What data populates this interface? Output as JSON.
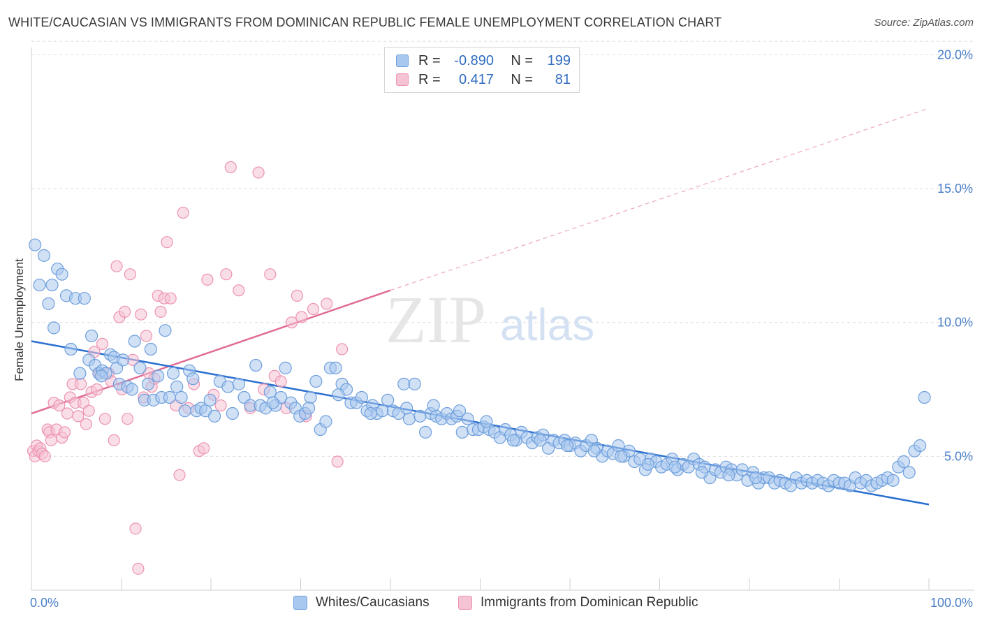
{
  "header": {
    "title": "WHITE/CAUCASIAN VS IMMIGRANTS FROM DOMINICAN REPUBLIC FEMALE UNEMPLOYMENT CORRELATION CHART",
    "source": "Source: ZipAtlas.com"
  },
  "watermark": {
    "zip": "ZIP",
    "atlas": "atlas"
  },
  "legend": {
    "rows": [
      {
        "r_label": "R =",
        "r_value": "-0.890",
        "n_label": "N =",
        "n_value": "199"
      },
      {
        "r_label": "R =",
        "r_value": "0.417",
        "n_label": "N =",
        "n_value": "81"
      }
    ]
  },
  "colors": {
    "blue_fill": "#a9c8ef",
    "blue_stroke": "#6f9fdc",
    "blue_line": "#2a6fd0",
    "pink_fill": "#f6c3d4",
    "pink_stroke": "#ec93b2",
    "pink_line": "#e06c96",
    "tick_text": "#4a7fc8"
  },
  "chart_data": {
    "type": "scatter",
    "title": "WHITE/CAUCASIAN VS IMMIGRANTS FROM DOMINICAN REPUBLIC FEMALE UNEMPLOYMENT CORRELATION CHART",
    "xlabel": "",
    "ylabel": "Female Unemployment",
    "xlim": [
      0,
      100
    ],
    "ylim": [
      0,
      20.5
    ],
    "x_tick_labels": [
      "0.0%",
      "100.0%"
    ],
    "y_ticks": [
      5,
      10,
      15,
      20
    ],
    "y_tick_labels": [
      "5.0%",
      "10.0%",
      "15.0%",
      "20.0%"
    ],
    "grid": true,
    "legend_position": "top-center",
    "series": [
      {
        "name": "Whites/Caucasians",
        "R": -0.89,
        "N": 199,
        "trend": {
          "x0": 0,
          "y0": 9.3,
          "x1": 100,
          "y1": 3.2
        },
        "points": [
          [
            0.4,
            12.9
          ],
          [
            0.9,
            11.4
          ],
          [
            1.4,
            12.5
          ],
          [
            1.9,
            10.7
          ],
          [
            2.3,
            11.4
          ],
          [
            2.9,
            12.0
          ],
          [
            3.4,
            11.8
          ],
          [
            3.9,
            11.0
          ],
          [
            4.4,
            9.0
          ],
          [
            4.9,
            10.9
          ],
          [
            5.4,
            8.1
          ],
          [
            5.9,
            10.9
          ],
          [
            6.4,
            8.6
          ],
          [
            6.7,
            9.5
          ],
          [
            7.1,
            8.4
          ],
          [
            7.5,
            8.1
          ],
          [
            7.9,
            8.2
          ],
          [
            8.3,
            8.1
          ],
          [
            8.8,
            8.8
          ],
          [
            9.2,
            8.7
          ],
          [
            9.5,
            8.3
          ],
          [
            9.8,
            7.7
          ],
          [
            10.2,
            8.6
          ],
          [
            10.7,
            7.6
          ],
          [
            11.2,
            7.5
          ],
          [
            11.5,
            9.3
          ],
          [
            12.1,
            8.3
          ],
          [
            12.6,
            7.1
          ],
          [
            13.0,
            7.7
          ],
          [
            13.6,
            7.1
          ],
          [
            14.1,
            8.0
          ],
          [
            14.5,
            7.2
          ],
          [
            14.9,
            9.7
          ],
          [
            15.4,
            7.2
          ],
          [
            15.8,
            8.1
          ],
          [
            16.2,
            7.6
          ],
          [
            16.7,
            7.2
          ],
          [
            17.1,
            6.7
          ],
          [
            17.6,
            8.2
          ],
          [
            18.0,
            7.9
          ],
          [
            18.4,
            6.7
          ],
          [
            18.9,
            6.8
          ],
          [
            19.4,
            6.7
          ],
          [
            19.9,
            7.1
          ],
          [
            20.4,
            6.5
          ],
          [
            21.0,
            7.8
          ],
          [
            21.9,
            7.6
          ],
          [
            23.1,
            7.7
          ],
          [
            23.7,
            7.2
          ],
          [
            24.4,
            6.9
          ],
          [
            25.0,
            8.4
          ],
          [
            25.5,
            6.9
          ],
          [
            26.1,
            6.8
          ],
          [
            26.6,
            7.4
          ],
          [
            27.2,
            6.9
          ],
          [
            27.8,
            7.2
          ],
          [
            28.3,
            8.3
          ],
          [
            28.9,
            7.0
          ],
          [
            29.4,
            6.8
          ],
          [
            29.9,
            6.5
          ],
          [
            30.5,
            6.6
          ],
          [
            31.1,
            7.2
          ],
          [
            31.7,
            7.8
          ],
          [
            32.2,
            6.0
          ],
          [
            32.8,
            6.3
          ],
          [
            33.3,
            8.3
          ],
          [
            33.9,
            8.3
          ],
          [
            34.6,
            7.7
          ],
          [
            35.1,
            7.5
          ],
          [
            35.6,
            7.0
          ],
          [
            36.2,
            7.0
          ],
          [
            36.8,
            7.2
          ],
          [
            37.4,
            6.7
          ],
          [
            38.0,
            6.9
          ],
          [
            38.5,
            6.6
          ],
          [
            39.1,
            6.7
          ],
          [
            39.7,
            7.1
          ],
          [
            40.3,
            6.7
          ],
          [
            40.9,
            6.6
          ],
          [
            41.5,
            7.7
          ],
          [
            42.1,
            6.4
          ],
          [
            42.7,
            7.7
          ],
          [
            43.3,
            6.5
          ],
          [
            43.9,
            5.9
          ],
          [
            44.5,
            6.6
          ],
          [
            45.1,
            6.5
          ],
          [
            45.7,
            6.4
          ],
          [
            46.3,
            6.6
          ],
          [
            46.8,
            6.4
          ],
          [
            47.4,
            6.5
          ],
          [
            48.0,
            5.9
          ],
          [
            48.6,
            6.4
          ],
          [
            49.2,
            6.0
          ],
          [
            49.8,
            6.0
          ],
          [
            50.4,
            6.1
          ],
          [
            51.0,
            6.0
          ],
          [
            51.6,
            5.9
          ],
          [
            52.2,
            5.7
          ],
          [
            52.8,
            6.0
          ],
          [
            53.4,
            5.8
          ],
          [
            54.0,
            5.6
          ],
          [
            54.6,
            5.9
          ],
          [
            55.2,
            5.7
          ],
          [
            55.8,
            5.5
          ],
          [
            56.4,
            5.7
          ],
          [
            57.0,
            5.8
          ],
          [
            57.6,
            5.3
          ],
          [
            58.2,
            5.6
          ],
          [
            58.8,
            5.5
          ],
          [
            59.4,
            5.6
          ],
          [
            60.0,
            5.4
          ],
          [
            60.6,
            5.5
          ],
          [
            61.2,
            5.2
          ],
          [
            61.8,
            5.4
          ],
          [
            62.4,
            5.6
          ],
          [
            63.0,
            5.3
          ],
          [
            63.6,
            5.0
          ],
          [
            64.2,
            5.2
          ],
          [
            64.8,
            5.1
          ],
          [
            65.4,
            5.4
          ],
          [
            66.0,
            5.0
          ],
          [
            66.6,
            5.2
          ],
          [
            67.2,
            4.8
          ],
          [
            67.8,
            4.9
          ],
          [
            68.4,
            4.5
          ],
          [
            69.0,
            4.9
          ],
          [
            69.6,
            4.8
          ],
          [
            70.2,
            4.6
          ],
          [
            70.8,
            4.7
          ],
          [
            71.4,
            4.9
          ],
          [
            72.0,
            4.5
          ],
          [
            72.6,
            4.7
          ],
          [
            73.2,
            4.6
          ],
          [
            73.8,
            4.9
          ],
          [
            74.4,
            4.7
          ],
          [
            75.0,
            4.6
          ],
          [
            75.6,
            4.2
          ],
          [
            76.2,
            4.5
          ],
          [
            76.8,
            4.4
          ],
          [
            77.4,
            4.6
          ],
          [
            78.0,
            4.5
          ],
          [
            78.6,
            4.3
          ],
          [
            79.2,
            4.5
          ],
          [
            79.8,
            4.1
          ],
          [
            80.4,
            4.4
          ],
          [
            81.0,
            4.0
          ],
          [
            81.6,
            4.2
          ],
          [
            82.2,
            4.2
          ],
          [
            82.8,
            4.0
          ],
          [
            83.4,
            4.1
          ],
          [
            84.0,
            4.0
          ],
          [
            84.6,
            3.9
          ],
          [
            85.2,
            4.2
          ],
          [
            85.8,
            4.0
          ],
          [
            86.4,
            4.1
          ],
          [
            87.0,
            4.0
          ],
          [
            87.6,
            4.1
          ],
          [
            88.2,
            4.0
          ],
          [
            88.8,
            3.9
          ],
          [
            89.4,
            4.1
          ],
          [
            90.0,
            4.0
          ],
          [
            90.6,
            4.0
          ],
          [
            91.2,
            3.9
          ],
          [
            91.8,
            4.2
          ],
          [
            92.4,
            4.0
          ],
          [
            93.0,
            4.1
          ],
          [
            93.6,
            3.9
          ],
          [
            94.2,
            4.0
          ],
          [
            94.8,
            4.1
          ],
          [
            95.4,
            4.2
          ],
          [
            96.0,
            4.1
          ],
          [
            96.6,
            4.6
          ],
          [
            97.2,
            4.8
          ],
          [
            97.8,
            4.4
          ],
          [
            98.4,
            5.2
          ],
          [
            99.0,
            5.4
          ],
          [
            99.5,
            7.2
          ],
          [
            2.5,
            9.8
          ],
          [
            7.8,
            8.0
          ],
          [
            13.3,
            9.0
          ],
          [
            22.4,
            6.6
          ],
          [
            26.9,
            7.0
          ],
          [
            30.9,
            6.8
          ],
          [
            34.2,
            7.3
          ],
          [
            37.8,
            6.6
          ],
          [
            41.8,
            6.8
          ],
          [
            44.8,
            6.9
          ],
          [
            47.7,
            6.7
          ],
          [
            50.7,
            6.3
          ],
          [
            53.7,
            5.6
          ],
          [
            56.7,
            5.6
          ],
          [
            59.7,
            5.4
          ],
          [
            62.7,
            5.2
          ],
          [
            65.7,
            5.0
          ],
          [
            68.7,
            4.7
          ],
          [
            71.7,
            4.6
          ],
          [
            74.7,
            4.4
          ],
          [
            77.7,
            4.3
          ],
          [
            80.7,
            4.2
          ]
        ]
      },
      {
        "name": "Immigrants from Dominican Republic",
        "R": 0.417,
        "N": 81,
        "trend": {
          "x0": 0,
          "y0": 6.6,
          "x1": 40,
          "y1": 11.2,
          "dash_x1": 100,
          "dash_y1": 18.0
        },
        "points": [
          [
            0.2,
            5.2
          ],
          [
            0.4,
            5.0
          ],
          [
            0.6,
            5.4
          ],
          [
            0.8,
            5.2
          ],
          [
            1.0,
            5.3
          ],
          [
            1.2,
            5.1
          ],
          [
            1.5,
            5.0
          ],
          [
            1.8,
            6.0
          ],
          [
            2.0,
            5.9
          ],
          [
            2.2,
            5.6
          ],
          [
            2.5,
            7.0
          ],
          [
            2.8,
            6.0
          ],
          [
            3.1,
            6.9
          ],
          [
            3.4,
            5.7
          ],
          [
            3.7,
            5.9
          ],
          [
            4.0,
            6.6
          ],
          [
            4.3,
            7.2
          ],
          [
            4.6,
            7.7
          ],
          [
            4.9,
            7.0
          ],
          [
            5.2,
            6.5
          ],
          [
            5.5,
            7.7
          ],
          [
            5.8,
            7.0
          ],
          [
            6.1,
            6.2
          ],
          [
            6.4,
            6.7
          ],
          [
            6.7,
            7.4
          ],
          [
            7.0,
            8.9
          ],
          [
            7.3,
            7.5
          ],
          [
            7.6,
            8.1
          ],
          [
            7.9,
            9.2
          ],
          [
            8.2,
            6.4
          ],
          [
            8.6,
            8.1
          ],
          [
            8.9,
            7.8
          ],
          [
            9.2,
            5.6
          ],
          [
            9.5,
            12.1
          ],
          [
            9.8,
            10.2
          ],
          [
            10.1,
            7.5
          ],
          [
            10.4,
            10.4
          ],
          [
            10.7,
            6.4
          ],
          [
            11.0,
            11.8
          ],
          [
            11.3,
            8.6
          ],
          [
            11.6,
            2.3
          ],
          [
            11.9,
            0.8
          ],
          [
            12.2,
            10.3
          ],
          [
            12.5,
            7.2
          ],
          [
            12.8,
            9.5
          ],
          [
            13.1,
            8.1
          ],
          [
            13.4,
            7.6
          ],
          [
            13.7,
            7.9
          ],
          [
            14.1,
            11.0
          ],
          [
            14.4,
            10.4
          ],
          [
            14.8,
            10.9
          ],
          [
            15.1,
            13.0
          ],
          [
            15.5,
            10.9
          ],
          [
            16.1,
            6.9
          ],
          [
            16.5,
            4.3
          ],
          [
            16.9,
            14.1
          ],
          [
            17.5,
            6.8
          ],
          [
            18.1,
            7.7
          ],
          [
            18.7,
            5.2
          ],
          [
            19.2,
            5.3
          ],
          [
            19.6,
            11.6
          ],
          [
            20.3,
            7.3
          ],
          [
            21.1,
            6.9
          ],
          [
            21.7,
            11.8
          ],
          [
            22.2,
            15.8
          ],
          [
            23.1,
            11.2
          ],
          [
            24.4,
            6.8
          ],
          [
            25.3,
            15.6
          ],
          [
            25.9,
            7.5
          ],
          [
            26.6,
            11.8
          ],
          [
            27.1,
            8.0
          ],
          [
            27.8,
            7.8
          ],
          [
            28.4,
            6.8
          ],
          [
            29.0,
            10.0
          ],
          [
            29.6,
            11.0
          ],
          [
            30.1,
            10.2
          ],
          [
            30.6,
            6.5
          ],
          [
            31.4,
            10.5
          ],
          [
            32.9,
            10.7
          ],
          [
            34.1,
            4.8
          ],
          [
            34.6,
            9.0
          ]
        ]
      }
    ]
  },
  "bottom_legend": {
    "items": [
      "Whites/Caucasians",
      "Immigrants from Dominican Republic"
    ]
  }
}
